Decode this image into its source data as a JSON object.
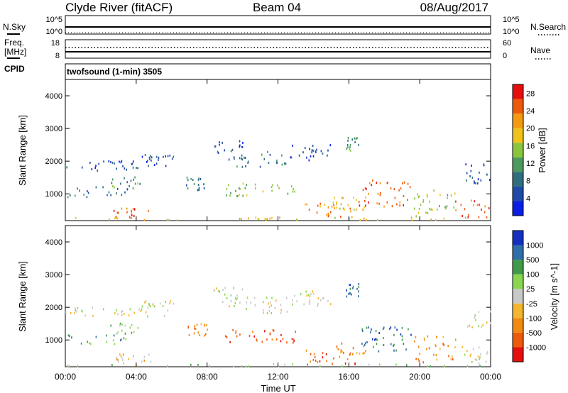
{
  "header": {
    "station": "Clyde River (fitACF)",
    "beam": "Beam 04",
    "date": "08/Aug/2017"
  },
  "status_panels": {
    "nsky_label": "N.Sky",
    "nsearch_label": "N.Search",
    "nsky_ticks": [
      "10^5",
      "10^0"
    ],
    "nsearch_ticks": [
      "10^5",
      "10^0"
    ],
    "freq_label_1": "Freq.",
    "freq_label_2": "[MHz]",
    "freq_ticks": [
      "18",
      "8"
    ],
    "nave_label": "Nave",
    "nave_ticks": [
      "60",
      "0"
    ],
    "cpid_label": "CPID",
    "cpid_text": "twofsound (1-min) 3505"
  },
  "colors": {
    "power": [
      "#0a1ee6",
      "#1f4aa8",
      "#2f6e7e",
      "#4d9a5f",
      "#8ac63c",
      "#f0c21a",
      "#f49a12",
      "#ee5a0c",
      "#e60f0f"
    ],
    "velocity": [
      "#e60f0f",
      "#ee5a0c",
      "#f08a10",
      "#f4b530",
      "#c8c8c8",
      "#8bd650",
      "#3f9a4a",
      "#2f6ea8",
      "#1430c0"
    ],
    "ground_scatter": "#b4b4b4"
  },
  "chart_data": [
    {
      "type": "heatmap",
      "name": "power",
      "xlabel": "",
      "ylabel": "Slant Range [km]",
      "xlim": [
        "00:00",
        "24:00"
      ],
      "ylim": [
        180,
        4500
      ],
      "yticks": [
        1000,
        2000,
        3000,
        4000
      ],
      "colorbar": {
        "label": "Power [dB]",
        "ticks": [
          4,
          8,
          12,
          16,
          20,
          24,
          28
        ],
        "range": [
          0,
          30
        ]
      },
      "scatter_regions": [
        {
          "t": [
            0.0,
            5.8
          ],
          "range": [
            1700,
            2000
          ],
          "level": 1
        },
        {
          "t": [
            4.3,
            6.2
          ],
          "range": [
            2000,
            2200
          ],
          "level": 1
        },
        {
          "t": [
            0.1,
            3.5
          ],
          "range": [
            850,
            1200
          ],
          "level": 2
        },
        {
          "t": [
            2.4,
            4.2
          ],
          "range": [
            1150,
            1500
          ],
          "level": 3
        },
        {
          "t": [
            2.7,
            4.8
          ],
          "range": [
            200,
            550
          ],
          "level": 7
        },
        {
          "t": [
            6.8,
            8.0
          ],
          "range": [
            1100,
            1500
          ],
          "level": 2
        },
        {
          "t": [
            8.2,
            10.0
          ],
          "range": [
            2100,
            2600
          ],
          "level": 1
        },
        {
          "t": [
            9.2,
            12.6
          ],
          "range": [
            1800,
            2300
          ],
          "level": 2
        },
        {
          "t": [
            9.0,
            13.0
          ],
          "range": [
            900,
            1300
          ],
          "level": 4
        },
        {
          "t": [
            12.6,
            15.0
          ],
          "range": [
            2000,
            2500
          ],
          "level": 1
        },
        {
          "t": [
            13.5,
            16.5
          ],
          "range": [
            250,
            700
          ],
          "level": 6
        },
        {
          "t": [
            15.0,
            17.0
          ],
          "range": [
            500,
            900
          ],
          "level": 5
        },
        {
          "t": [
            16.5,
            19.5
          ],
          "range": [
            600,
            1400
          ],
          "level": 7
        },
        {
          "t": [
            19.5,
            22.0
          ],
          "range": [
            300,
            1100
          ],
          "level": 4
        },
        {
          "t": [
            15.8,
            16.6
          ],
          "range": [
            2300,
            2700
          ],
          "level": 3
        },
        {
          "t": [
            22.0,
            24.0
          ],
          "range": [
            250,
            800
          ],
          "level": 7
        },
        {
          "t": [
            22.5,
            24.0
          ],
          "range": [
            1300,
            1900
          ],
          "level": 1
        },
        {
          "t": [
            0.0,
            24.0
          ],
          "range": [
            180,
            260
          ],
          "level": 5
        }
      ]
    },
    {
      "type": "heatmap",
      "name": "velocity",
      "xlabel": "Time UT",
      "ylabel": "Slant Range [km]",
      "xlim": [
        "00:00",
        "24:00"
      ],
      "ylim": [
        180,
        4500
      ],
      "xticks": [
        "00:00",
        "04:00",
        "08:00",
        "12:00",
        "16:00",
        "20:00",
        "00:00"
      ],
      "yticks": [
        1000,
        2000,
        3000,
        4000
      ],
      "colorbar": {
        "label": "Velocity [m s^-1]",
        "ticks": [
          1000,
          500,
          100,
          25,
          -25,
          -100,
          -500,
          -1000
        ]
      },
      "scatter_regions": [
        {
          "t": [
            0.0,
            5.8
          ],
          "range": [
            1700,
            2000
          ],
          "level": 4
        },
        {
          "t": [
            4.3,
            6.2
          ],
          "range": [
            2000,
            2200
          ],
          "level": 4
        },
        {
          "t": [
            0.1,
            3.5
          ],
          "range": [
            850,
            1200
          ],
          "level": 6
        },
        {
          "t": [
            2.4,
            4.2
          ],
          "range": [
            1150,
            1500
          ],
          "level": 5
        },
        {
          "t": [
            2.7,
            4.8
          ],
          "range": [
            200,
            550
          ],
          "level": 3
        },
        {
          "t": [
            6.8,
            8.0
          ],
          "range": [
            1100,
            1500
          ],
          "level": 2
        },
        {
          "t": [
            8.2,
            10.0
          ],
          "range": [
            2100,
            2600
          ],
          "level": 4
        },
        {
          "t": [
            9.2,
            12.6
          ],
          "range": [
            1800,
            2300
          ],
          "level": 4
        },
        {
          "t": [
            9.0,
            13.0
          ],
          "range": [
            900,
            1300
          ],
          "level": 1
        },
        {
          "t": [
            12.6,
            15.0
          ],
          "range": [
            2000,
            2500
          ],
          "level": 4
        },
        {
          "t": [
            13.5,
            16.5
          ],
          "range": [
            250,
            700
          ],
          "level": 1
        },
        {
          "t": [
            15.0,
            17.0
          ],
          "range": [
            500,
            900
          ],
          "level": 2
        },
        {
          "t": [
            16.5,
            19.5
          ],
          "range": [
            600,
            1400
          ],
          "level": 7
        },
        {
          "t": [
            19.5,
            22.0
          ],
          "range": [
            300,
            1100
          ],
          "level": 2
        },
        {
          "t": [
            15.8,
            16.6
          ],
          "range": [
            2300,
            2700
          ],
          "level": 7
        },
        {
          "t": [
            22.0,
            24.0
          ],
          "range": [
            250,
            800
          ],
          "level": 4
        },
        {
          "t": [
            22.5,
            24.0
          ],
          "range": [
            1300,
            1900
          ],
          "level": 4
        },
        {
          "t": [
            0.0,
            24.0
          ],
          "range": [
            180,
            260
          ],
          "level": 5
        }
      ]
    }
  ]
}
